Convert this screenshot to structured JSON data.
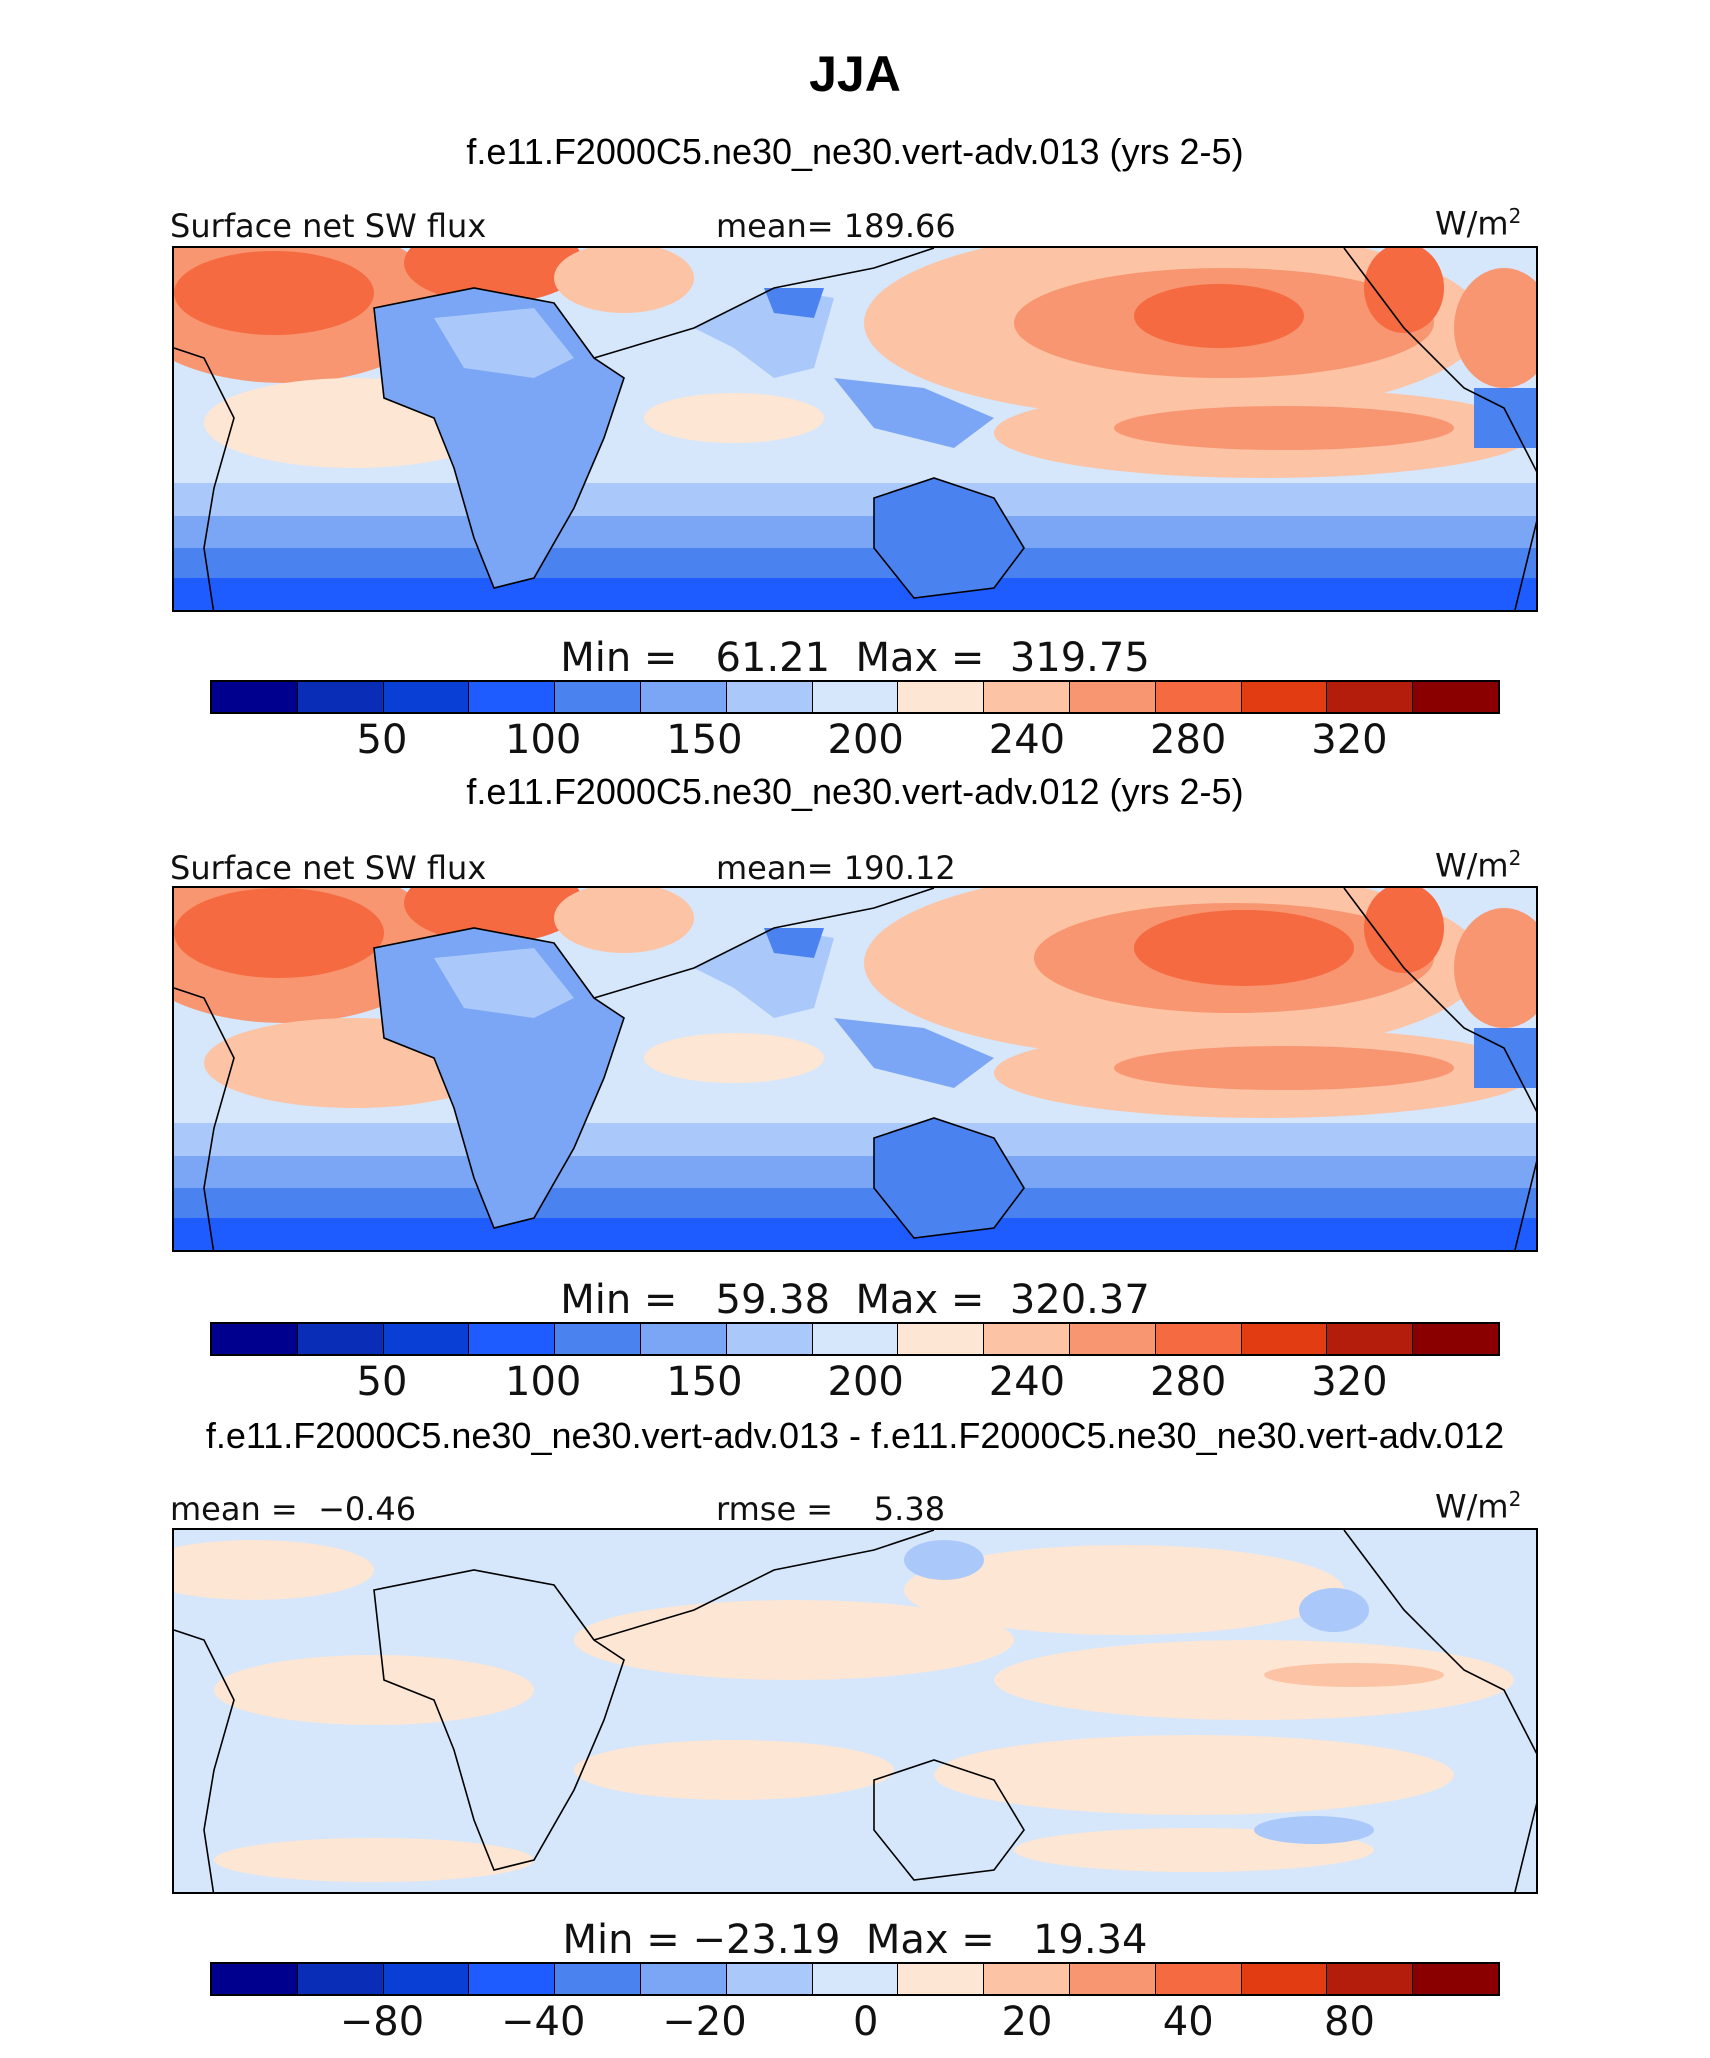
{
  "title": "JJA",
  "palette_abs": [
    "#00008f",
    "#0a2db8",
    "#0a3fd6",
    "#1f5cff",
    "#4a82f0",
    "#7aa6f5",
    "#aac8fa",
    "#d6e6fb",
    "#fde6d4",
    "#fcc3a5",
    "#f79670",
    "#f56a41",
    "#e23d12",
    "#b41d0b",
    "#8a0000"
  ],
  "palette_diff": [
    "#00008f",
    "#0a2db8",
    "#0a3fd6",
    "#1f5cff",
    "#4a82f0",
    "#7aa6f5",
    "#aac8fa",
    "#d6e6fb",
    "#fde6d4",
    "#fcc3a5",
    "#f79670",
    "#f56a41",
    "#e23d12",
    "#b41d0b",
    "#8a0000"
  ],
  "panels": [
    {
      "title": "f.e11.F2000C5.ne30_ne30.vert-adv.013 (yrs 2-5)",
      "left_label": "Surface net SW flux",
      "center_label": "mean= 189.66",
      "units": "W/m",
      "units_sup": "2",
      "minmax": "Min =   61.21  Max =  319.75",
      "ticks": [
        "50",
        "100",
        "150",
        "200",
        "240",
        "280",
        "320"
      ]
    },
    {
      "title": "f.e11.F2000C5.ne30_ne30.vert-adv.012 (yrs 2-5)",
      "left_label": "Surface net SW flux",
      "center_label": "mean= 190.12",
      "units": "W/m",
      "units_sup": "2",
      "minmax": "Min =   59.38  Max =  320.37",
      "ticks": [
        "50",
        "100",
        "150",
        "200",
        "240",
        "280",
        "320"
      ]
    },
    {
      "title": "f.e11.F2000C5.ne30_ne30.vert-adv.013 - f.e11.F2000C5.ne30_ne30.vert-adv.012",
      "left_label": "mean =  −0.46",
      "center_label": "rmse =    5.38",
      "units": "W/m",
      "units_sup": "2",
      "minmax": "Min = −23.19  Max =   19.34",
      "ticks": [
        "−80",
        "−40",
        "−20",
        "0",
        "20",
        "40",
        "80"
      ]
    }
  ]
}
